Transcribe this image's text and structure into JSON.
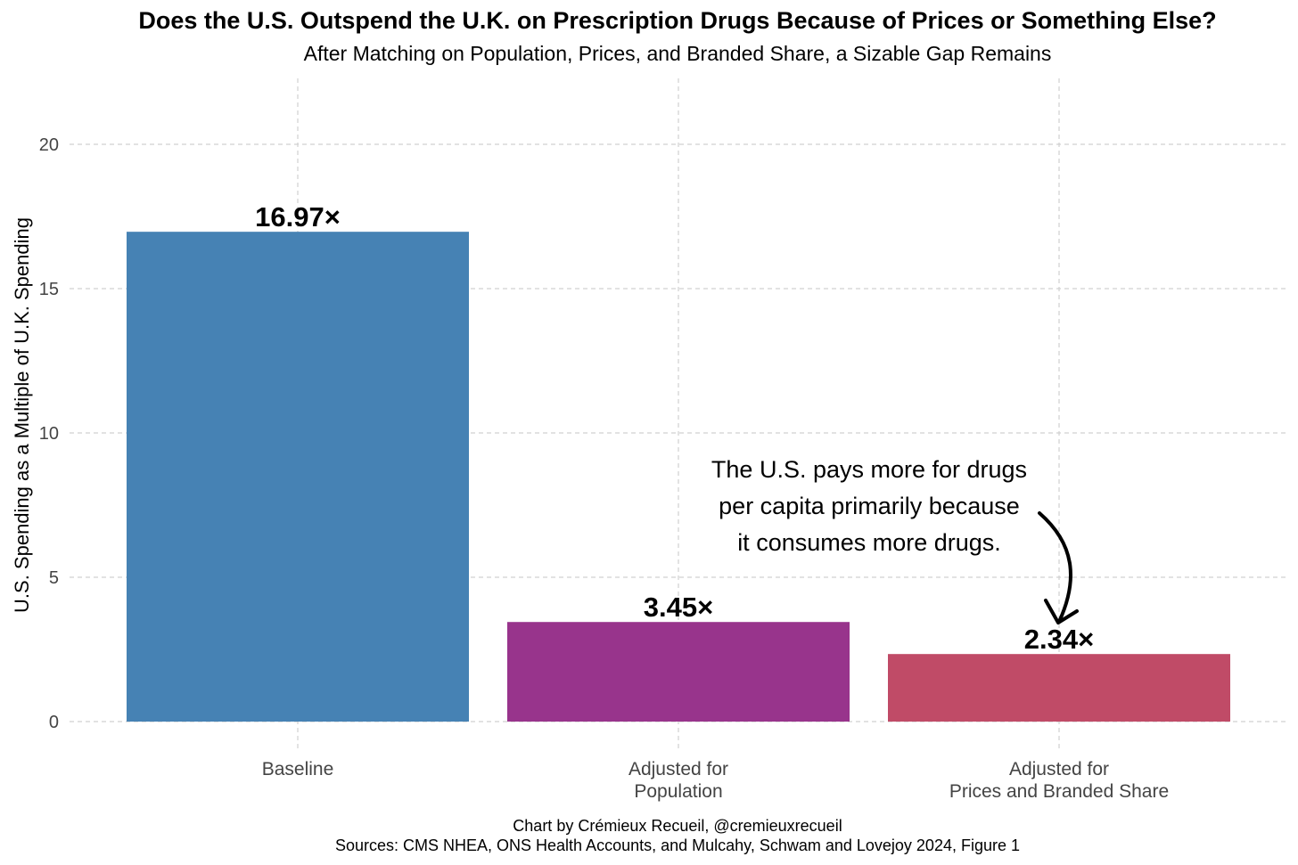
{
  "title": "Does the U.S. Outspend the U.K. on Prescription Drugs Because of Prices or Something Else?",
  "subtitle": "After Matching on Population, Prices, and Branded Share, a Sizable Gap Remains",
  "caption": {
    "line1": "Chart by Crémieux Recueil, @cremieuxrecueil",
    "line2": "Sources: CMS NHEA, ONS Health Accounts, and Mulcahy, Schwam and Lovejoy 2024, Figure 1"
  },
  "chart_data": {
    "type": "bar",
    "title": "Does the U.S. Outspend the U.K. on Prescription Drugs Because of Prices or Something Else?",
    "xlabel": "",
    "ylabel": "U.S. Spending as a Multiple of U.K. Spending",
    "ylim": [
      0,
      22
    ],
    "yticks": [
      0,
      5,
      10,
      15,
      20
    ],
    "grid": true,
    "categories": [
      [
        "Baseline"
      ],
      [
        "Adjusted for",
        "Population"
      ],
      [
        "Adjusted for",
        "Prices and Branded Share"
      ]
    ],
    "values": [
      16.97,
      3.45,
      2.34
    ],
    "data_labels": [
      "16.97×",
      "3.45×",
      "2.34×"
    ],
    "colors": [
      "#4682B4",
      "#98348C",
      "#C04B67"
    ],
    "annotation": {
      "lines": [
        "The U.S. pays more for drugs",
        "per capita primarily because",
        "it consumes more drugs."
      ],
      "target_category_index": 2
    }
  }
}
